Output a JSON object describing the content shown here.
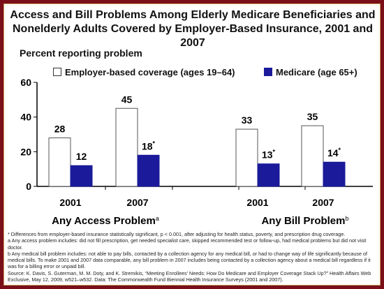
{
  "title_line1": "Access and Bill Problems Among Elderly Medicare Beneficiaries and",
  "title_line2": "Nonelderly Adults Covered by Employer-Based Insurance, 2001 and 2007",
  "footnotes": [
    "* Differences from employer-based insurance statistically significant, p < 0.001, after adjusting for health status, poverty, and prescription drug coverage.",
    "a Any access problem includes: did not fill prescription, get needed specialist care, skipped recommended test or follow-up, had medical problems but did not visit doctor.",
    "b Any medical bill problem includes: not able to pay bills, contacted by a collection agency for any medical bill, or had to change way of life significantly because of medical bills. To make 2001 and 2007 data comparable, any bill problem in 2007 includes being contacted by a collection agency about a medical bill regardless if it was for a billing error or unpaid bill.",
    "Source: K. Davis, S. Guterman, M. M. Doty, and K. Stremikis, “Meeting Enrollees’ Needs: How Do Medicare and Employer Coverage Stack Up?” Health Affairs Web Exclusive, May 12, 2009, w521–w532. Data: The Commonwealth Fund Biennial Health Insurance Surveys (2001 and 2007)."
  ],
  "colors": {
    "employer": "#ffffff",
    "medicare": "#1a1a9a",
    "frame": "#7a0f1a"
  },
  "chart_data": {
    "type": "bar",
    "ylabel": "Percent reporting problem",
    "ylim": [
      0,
      60
    ],
    "yticks": [
      0,
      20,
      40,
      60
    ],
    "groups": [
      {
        "label": "Any Access Problem",
        "superscript": "a",
        "categories": [
          "2001",
          "2007"
        ]
      },
      {
        "label": "Any Bill Problem",
        "superscript": "b",
        "categories": [
          "2001",
          "2007"
        ]
      }
    ],
    "categories": [
      "2001",
      "2007",
      "2001",
      "2007"
    ],
    "series": [
      {
        "name": "Employer-based coverage (ages 19–64)",
        "values": [
          28,
          45,
          33,
          35
        ],
        "labels": [
          "28",
          "45",
          "33",
          "35"
        ]
      },
      {
        "name": "Medicare (age 65+)",
        "values": [
          12,
          18,
          13,
          14
        ],
        "labels": [
          "12",
          "18*",
          "13*",
          "14*"
        ]
      }
    ],
    "grid": false,
    "legend": "top"
  }
}
